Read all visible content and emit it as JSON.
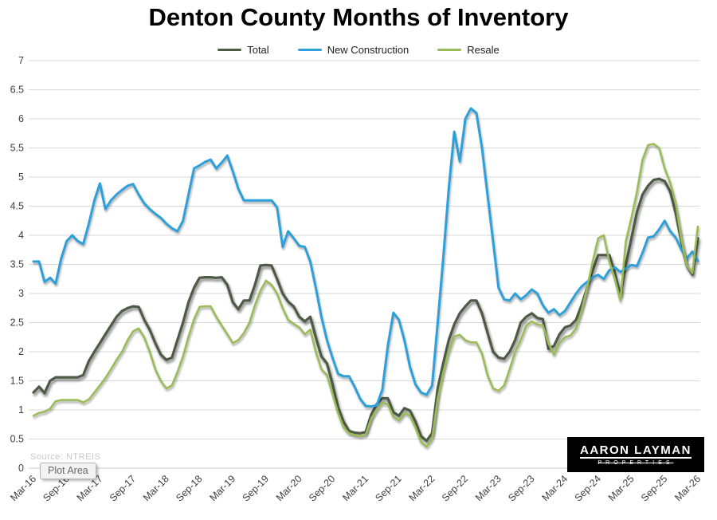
{
  "title": "Denton County Months of Inventory",
  "legend": {
    "items": [
      {
        "label": "Total",
        "color": "#4e5a44"
      },
      {
        "label": "New Construction",
        "color": "#2e9fd8"
      },
      {
        "label": "Resale",
        "color": "#9bbb59"
      }
    ]
  },
  "overlays": {
    "plot_area_tooltip": "Plot Area",
    "source_text": "Source: NTREIS",
    "logo": {
      "line1": "AARON LAYMAN",
      "line2": "PROPERTIES"
    }
  },
  "chart_data": {
    "type": "line",
    "title": "Denton County Months of Inventory",
    "x_unit": "month",
    "x_start": "Mar-16",
    "x_end": "Mar-26",
    "x_tick_every": 6,
    "x_tick_labels": [
      "Mar-16",
      "Sep-16",
      "Mar-17",
      "Sep-17",
      "Mar-18",
      "Sep-18",
      "Mar-19",
      "Sep-19",
      "Mar-20",
      "Sep-20",
      "Mar-21",
      "Sep-21",
      "Mar-22",
      "Sep-22",
      "Mar-23",
      "Sep-23",
      "Mar-24",
      "Sep-24",
      "Mar-25",
      "Sep-25",
      "Mar-26"
    ],
    "ylim": [
      0,
      7
    ],
    "y_tick_step": 0.5,
    "y_tick_labels": [
      "0",
      "0.5",
      "1",
      "1.5",
      "2",
      "2.5",
      "3",
      "3.5",
      "4",
      "4.5",
      "5",
      "5.5",
      "6",
      "6.5",
      "7"
    ],
    "grid": "horizontal",
    "legend_position": "top",
    "colors": {
      "grid": "#d9d9d9",
      "zero_line": "#c9c9c9",
      "axis_text": "#3f3f3f"
    },
    "series": [
      {
        "name": "Total",
        "color": "#4e5a44",
        "width": 3.2,
        "values": [
          1.3,
          1.4,
          1.29,
          1.5,
          1.56,
          1.56,
          1.56,
          1.56,
          1.56,
          1.6,
          1.84,
          2.0,
          2.15,
          2.3,
          2.45,
          2.6,
          2.7,
          2.75,
          2.78,
          2.77,
          2.55,
          2.38,
          2.15,
          1.95,
          1.86,
          1.9,
          2.2,
          2.5,
          2.85,
          3.1,
          3.27,
          3.28,
          3.28,
          3.27,
          3.28,
          3.15,
          2.85,
          2.73,
          2.88,
          2.88,
          3.15,
          3.48,
          3.49,
          3.48,
          3.25,
          3.0,
          2.86,
          2.78,
          2.6,
          2.52,
          2.6,
          2.25,
          1.92,
          1.8,
          1.45,
          1.05,
          0.8,
          0.64,
          0.61,
          0.6,
          0.62,
          0.92,
          1.1,
          1.2,
          1.2,
          0.96,
          0.9,
          1.03,
          0.99,
          0.8,
          0.55,
          0.47,
          0.6,
          1.37,
          1.8,
          2.2,
          2.47,
          2.66,
          2.78,
          2.88,
          2.88,
          2.66,
          2.33,
          2.0,
          1.9,
          1.88,
          2.0,
          2.2,
          2.5,
          2.6,
          2.66,
          2.58,
          2.56,
          2.05,
          2.1,
          2.3,
          2.42,
          2.45,
          2.55,
          2.8,
          3.1,
          3.4,
          3.66,
          3.66,
          3.66,
          3.35,
          2.97,
          3.5,
          3.95,
          4.4,
          4.7,
          4.85,
          4.95,
          4.97,
          4.93,
          4.75,
          4.38,
          3.9,
          3.48,
          3.33,
          3.95
        ]
      },
      {
        "name": "New Construction",
        "color": "#2e9fd8",
        "width": 3,
        "values": [
          3.55,
          3.55,
          3.2,
          3.27,
          3.17,
          3.6,
          3.9,
          4.0,
          3.9,
          3.85,
          4.2,
          4.6,
          4.89,
          4.45,
          4.6,
          4.7,
          4.78,
          4.85,
          4.88,
          4.7,
          4.55,
          4.45,
          4.37,
          4.3,
          4.2,
          4.12,
          4.07,
          4.25,
          4.7,
          5.15,
          5.2,
          5.26,
          5.3,
          5.15,
          5.25,
          5.37,
          5.1,
          4.8,
          4.6,
          4.6,
          4.6,
          4.6,
          4.6,
          4.6,
          4.48,
          3.8,
          4.07,
          3.95,
          3.82,
          3.8,
          3.55,
          3.1,
          2.6,
          2.2,
          1.9,
          1.62,
          1.58,
          1.58,
          1.4,
          1.19,
          1.07,
          1.06,
          1.08,
          1.35,
          2.1,
          2.67,
          2.55,
          2.2,
          1.74,
          1.44,
          1.3,
          1.26,
          1.42,
          2.5,
          3.6,
          4.8,
          5.78,
          5.27,
          6.0,
          6.18,
          6.1,
          5.5,
          4.7,
          3.9,
          3.1,
          2.9,
          2.88,
          3.0,
          2.9,
          2.97,
          3.07,
          3.0,
          2.8,
          2.67,
          2.73,
          2.63,
          2.7,
          2.85,
          3.0,
          3.12,
          3.2,
          3.28,
          3.32,
          3.25,
          3.4,
          3.45,
          3.37,
          3.43,
          3.49,
          3.47,
          3.7,
          3.96,
          3.98,
          4.1,
          4.25,
          4.07,
          3.96,
          3.76,
          3.6,
          3.72,
          3.56
        ]
      },
      {
        "name": "Resale",
        "color": "#9bbb59",
        "width": 2.6,
        "values": [
          0.9,
          0.95,
          0.97,
          1.02,
          1.15,
          1.17,
          1.17,
          1.17,
          1.17,
          1.13,
          1.18,
          1.3,
          1.42,
          1.55,
          1.7,
          1.86,
          2.0,
          2.2,
          2.35,
          2.4,
          2.25,
          2.0,
          1.7,
          1.5,
          1.37,
          1.42,
          1.65,
          1.92,
          2.26,
          2.56,
          2.77,
          2.78,
          2.78,
          2.6,
          2.45,
          2.3,
          2.15,
          2.2,
          2.32,
          2.5,
          2.8,
          3.05,
          3.22,
          3.15,
          3.0,
          2.75,
          2.55,
          2.48,
          2.42,
          2.3,
          2.38,
          2.0,
          1.7,
          1.6,
          1.28,
          0.95,
          0.7,
          0.6,
          0.57,
          0.55,
          0.57,
          0.85,
          1.0,
          1.12,
          1.1,
          0.88,
          0.82,
          0.95,
          0.9,
          0.7,
          0.45,
          0.37,
          0.5,
          1.19,
          1.64,
          2.0,
          2.26,
          2.29,
          2.2,
          2.16,
          2.16,
          1.97,
          1.6,
          1.37,
          1.33,
          1.42,
          1.7,
          2.0,
          2.2,
          2.45,
          2.52,
          2.47,
          2.45,
          2.15,
          1.95,
          2.15,
          2.25,
          2.28,
          2.4,
          2.7,
          3.1,
          3.55,
          3.95,
          4.0,
          3.55,
          3.25,
          2.88,
          3.9,
          4.3,
          4.75,
          5.3,
          5.55,
          5.57,
          5.5,
          5.15,
          4.9,
          4.55,
          3.95,
          3.48,
          3.35,
          4.15
        ]
      }
    ]
  }
}
